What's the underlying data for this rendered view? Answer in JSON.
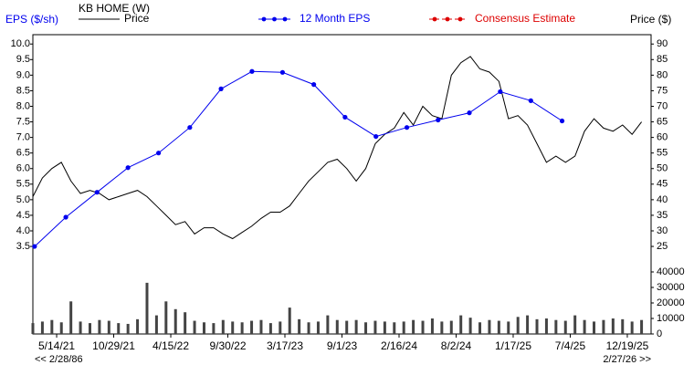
{
  "chart_data": {
    "type": "line",
    "legend_title": "KB HOME (W)",
    "y_label": "EPS ($/sh)",
    "y2_label": "Price ($)",
    "nav_back": "<< 2/28/86",
    "nav_forward": "2/27/26 >>",
    "xlim": [
      "2021-03-05",
      "2026-02-27"
    ],
    "xticks": [
      {
        "value": "2021-05-14",
        "label": "5/14/21"
      },
      {
        "value": "2021-10-29",
        "label": "10/29/21"
      },
      {
        "value": "2022-04-15",
        "label": "4/15/22"
      },
      {
        "value": "2022-09-30",
        "label": "9/30/22"
      },
      {
        "value": "2023-03-17",
        "label": "3/17/23"
      },
      {
        "value": "2023-09-01",
        "label": "9/1/23"
      },
      {
        "value": "2024-02-16",
        "label": "2/16/24"
      },
      {
        "value": "2024-08-02",
        "label": "8/2/24"
      },
      {
        "value": "2025-01-17",
        "label": "1/17/25"
      },
      {
        "value": "2025-07-04",
        "label": "7/4/25"
      },
      {
        "value": "2025-12-19",
        "label": "12/19/25"
      }
    ],
    "ylim": [
      3.15,
      10.3
    ],
    "yticks": [
      3.5,
      {
        "value": 4,
        "label": "4.0"
      },
      4.5,
      {
        "value": 5,
        "label": "5.0"
      },
      5.5,
      {
        "value": 6,
        "label": "6.0"
      },
      6.5,
      {
        "value": 7,
        "label": "7.0"
      },
      7.5,
      {
        "value": 8,
        "label": "8.0"
      },
      8.5,
      {
        "value": 9,
        "label": "9.0"
      },
      9.5,
      {
        "value": 10,
        "label": "10.0"
      }
    ],
    "y2lim": [
      21.5,
      93
    ],
    "y2ticks": [
      25,
      30,
      35,
      40,
      45,
      50,
      55,
      60,
      65,
      70,
      75,
      80,
      85,
      90
    ],
    "y3lim": [
      0,
      40000
    ],
    "y3ticks": [
      0,
      10000,
      20000,
      30000,
      40000
    ],
    "series": [
      {
        "name": "Price",
        "color": "#000000",
        "axis": "y2",
        "x": [
          "2021-03-05",
          "2021-04-02",
          "2021-04-30",
          "2021-05-28",
          "2021-06-25",
          "2021-07-23",
          "2021-08-20",
          "2021-09-17",
          "2021-10-15",
          "2021-11-12",
          "2021-12-10",
          "2022-01-07",
          "2022-02-04",
          "2022-03-04",
          "2022-04-01",
          "2022-04-29",
          "2022-05-27",
          "2022-06-24",
          "2022-07-22",
          "2022-08-19",
          "2022-09-16",
          "2022-10-14",
          "2022-11-11",
          "2022-12-09",
          "2023-01-06",
          "2023-02-03",
          "2023-03-03",
          "2023-03-31",
          "2023-04-28",
          "2023-05-26",
          "2023-06-23",
          "2023-07-21",
          "2023-08-18",
          "2023-09-15",
          "2023-10-13",
          "2023-11-10",
          "2023-12-08",
          "2024-01-05",
          "2024-02-02",
          "2024-03-01",
          "2024-03-29",
          "2024-04-26",
          "2024-05-24",
          "2024-06-21",
          "2024-07-19",
          "2024-08-16",
          "2024-09-13",
          "2024-10-11",
          "2024-11-08",
          "2024-12-06",
          "2025-01-03",
          "2025-01-31",
          "2025-02-28",
          "2025-03-28",
          "2025-04-25",
          "2025-05-23",
          "2025-06-20",
          "2025-07-18",
          "2025-08-15",
          "2025-09-12",
          "2025-10-10",
          "2025-11-07",
          "2025-12-05",
          "2026-01-02",
          "2026-01-30"
        ],
        "values": [
          41,
          47,
          50,
          52,
          46,
          42,
          43,
          42,
          40,
          41,
          42,
          43,
          41,
          38,
          35,
          32,
          33,
          29,
          31,
          31,
          29,
          27.5,
          29.5,
          31.5,
          34,
          36,
          36,
          38,
          42,
          46,
          49,
          52,
          53,
          50,
          46,
          50,
          58,
          61,
          63,
          68,
          64,
          70,
          67,
          66,
          80,
          84,
          86,
          82,
          81,
          78,
          66,
          67,
          64,
          58,
          52,
          54,
          52,
          54,
          62,
          66,
          63,
          62,
          64,
          61,
          65
        ]
      },
      {
        "name": "12 Month EPS",
        "color": "#0000ee",
        "x": [
          "2021-03-10",
          "2021-06-10",
          "2021-09-10",
          "2021-12-10",
          "2022-03-10",
          "2022-06-10",
          "2022-09-10",
          "2022-12-10",
          "2023-03-10",
          "2023-06-10",
          "2023-09-10",
          "2023-12-10",
          "2024-03-10",
          "2024-06-10",
          "2024-09-10",
          "2024-12-10",
          "2025-03-10",
          "2025-06-10"
        ],
        "values": [
          3.5,
          4.44,
          5.24,
          6.03,
          6.5,
          7.32,
          8.56,
          9.12,
          9.09,
          8.7,
          7.65,
          7.03,
          7.32,
          7.56,
          7.79,
          8.47,
          8.18,
          7.53
        ]
      },
      {
        "name": "Consensus Estimate",
        "color": "#dd0000",
        "x": [],
        "values": []
      }
    ],
    "volume": {
      "color": "#444444",
      "values": [
        7000,
        8000,
        9000,
        7500,
        21000,
        8000,
        7000,
        9000,
        8500,
        7000,
        6500,
        9500,
        33000,
        12000,
        21000,
        16000,
        14000,
        8500,
        7500,
        7000,
        9000,
        8000,
        7500,
        8500,
        9000,
        7000,
        8000,
        17000,
        9500,
        7500,
        8000,
        12000,
        9000,
        8500,
        9000,
        7500,
        8500,
        8000,
        7500,
        8000,
        9000,
        8500,
        10000,
        8000,
        8500,
        12000,
        10500,
        7500,
        9000,
        8500,
        8000,
        11000,
        12000,
        9500,
        10000,
        9000,
        8500,
        12000,
        9000,
        8000,
        9000,
        10000,
        9500,
        8000,
        9000
      ]
    }
  }
}
